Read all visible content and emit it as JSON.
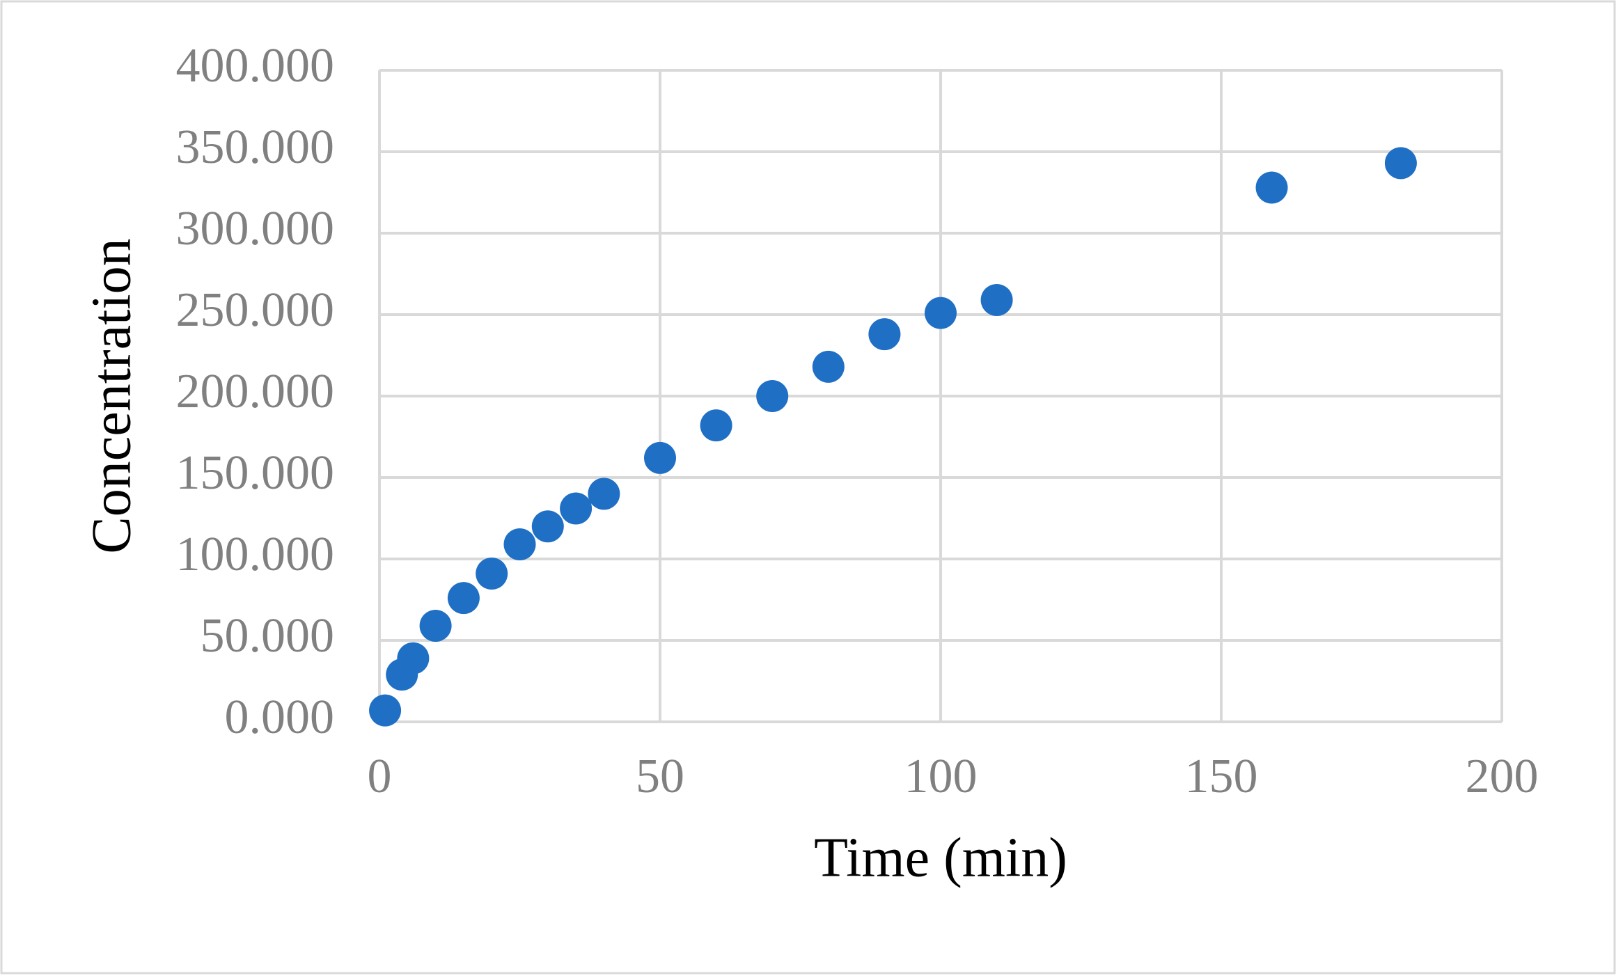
{
  "chart_data": {
    "type": "scatter",
    "x_label": "Time (min)",
    "y_label": "Concentration",
    "series": [
      {
        "name": "Concentration",
        "color": "#1f6fc5",
        "x": [
          1,
          4,
          6,
          10,
          15,
          20,
          25,
          30,
          35,
          40,
          50,
          60,
          70,
          80,
          90,
          100,
          110,
          159,
          182
        ],
        "values": [
          7,
          29,
          39,
          59,
          76,
          91,
          109,
          120,
          131,
          140,
          162,
          182,
          200,
          218,
          238,
          251,
          259,
          328,
          343
        ]
      }
    ],
    "xlim": [
      0,
      200
    ],
    "xticks": [
      0,
      50,
      100,
      150,
      200
    ],
    "ylim": [
      0,
      400
    ],
    "yticks": [
      {
        "value": 0,
        "label": "0.000"
      },
      {
        "value": 50,
        "label": "50.000"
      },
      {
        "value": 100,
        "label": "100.000"
      },
      {
        "value": 150,
        "label": "150.000"
      },
      {
        "value": 200,
        "label": "200.000"
      },
      {
        "value": 250,
        "label": "250.000"
      },
      {
        "value": 300,
        "label": "300.000"
      },
      {
        "value": 350,
        "label": "350.000"
      },
      {
        "value": 400,
        "label": "400.000"
      }
    ],
    "grid": true
  }
}
